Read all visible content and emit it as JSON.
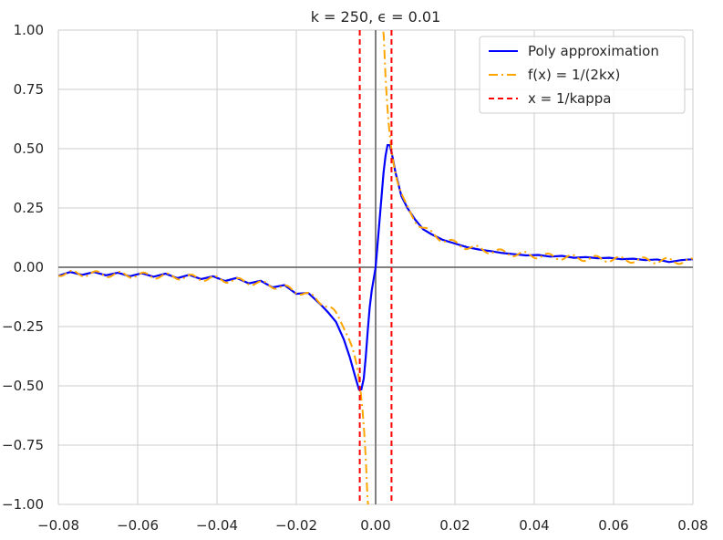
{
  "chart_data": {
    "type": "line",
    "title": "k = 250, ϵ = 0.01",
    "xlabel": "",
    "ylabel": "",
    "xlim": [
      -0.08,
      0.08
    ],
    "ylim": [
      -1.0,
      1.0
    ],
    "grid": true,
    "legend_position": "top-right",
    "x_ticks": [
      -0.08,
      -0.06,
      -0.04,
      -0.02,
      0.0,
      0.02,
      0.04,
      0.06,
      0.08
    ],
    "x_tick_labels": [
      "−0.08",
      "−0.06",
      "−0.04",
      "−0.02",
      "0.00",
      "0.02",
      "0.04",
      "0.06",
      "0.08"
    ],
    "y_ticks": [
      1.0,
      0.75,
      0.5,
      0.25,
      0.0,
      -0.25,
      -0.5,
      -0.75,
      -1.0
    ],
    "y_tick_labels": [
      "1.00",
      "0.75",
      "0.50",
      "0.25",
      "0.00",
      "−0.25",
      "−0.50",
      "−0.75",
      "−1.00"
    ],
    "k": 250,
    "kappa_lines": [
      -0.004,
      0.004
    ],
    "series": [
      {
        "name": "Poly approximation",
        "color": "#0000ff",
        "style": "solid",
        "x": [
          -0.08,
          -0.077,
          -0.074,
          -0.071,
          -0.068,
          -0.065,
          -0.062,
          -0.059,
          -0.056,
          -0.053,
          -0.05,
          -0.047,
          -0.044,
          -0.041,
          -0.038,
          -0.035,
          -0.032,
          -0.029,
          -0.026,
          -0.023,
          -0.02,
          -0.017,
          -0.014,
          -0.012,
          -0.01,
          -0.008,
          -0.0065,
          -0.005,
          -0.0042,
          -0.0036,
          -0.003,
          -0.0025,
          -0.002,
          -0.0015,
          -0.001,
          -0.0005,
          0.0,
          0.0005,
          0.001,
          0.0015,
          0.002,
          0.0025,
          0.003,
          0.0036,
          0.0042,
          0.005,
          0.0065,
          0.008,
          0.01,
          0.012,
          0.014,
          0.017,
          0.02,
          0.023,
          0.026,
          0.029,
          0.032,
          0.035,
          0.038,
          0.041,
          0.044,
          0.047,
          0.05,
          0.053,
          0.056,
          0.059,
          0.062,
          0.065,
          0.068,
          0.071,
          0.074,
          0.077,
          0.08
        ],
        "y": [
          -0.036,
          -0.02,
          -0.032,
          -0.02,
          -0.034,
          -0.023,
          -0.038,
          -0.025,
          -0.04,
          -0.027,
          -0.046,
          -0.032,
          -0.05,
          -0.038,
          -0.058,
          -0.045,
          -0.068,
          -0.057,
          -0.085,
          -0.075,
          -0.112,
          -0.108,
          -0.155,
          -0.19,
          -0.23,
          -0.305,
          -0.38,
          -0.47,
          -0.515,
          -0.515,
          -0.47,
          -0.38,
          -0.27,
          -0.17,
          -0.1,
          -0.05,
          0.0,
          0.1,
          0.2,
          0.3,
          0.4,
          0.47,
          0.515,
          0.515,
          0.47,
          0.4,
          0.3,
          0.25,
          0.2,
          0.16,
          0.14,
          0.115,
          0.1,
          0.085,
          0.075,
          0.068,
          0.06,
          0.055,
          0.05,
          0.052,
          0.045,
          0.048,
          0.04,
          0.043,
          0.038,
          0.04,
          0.034,
          0.036,
          0.03,
          0.033,
          0.022,
          0.03,
          0.034
        ]
      },
      {
        "name": "f(x) = 1/(2kx)",
        "color": "#ffa500",
        "style": "dashdot",
        "formula": "1/(2*250*x)"
      },
      {
        "name": "x = 1/kappa",
        "color": "#ff0000",
        "style": "dashed"
      }
    ]
  }
}
